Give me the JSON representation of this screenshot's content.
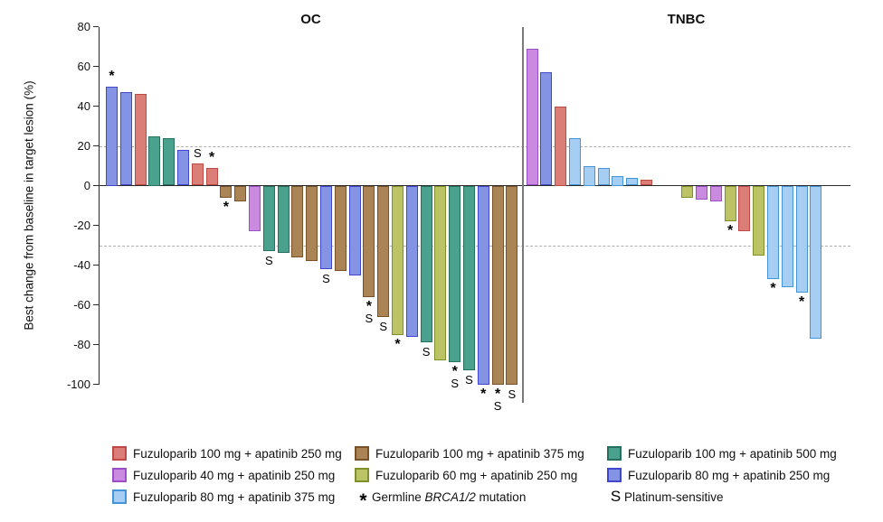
{
  "chart_data": {
    "type": "bar",
    "subtype": "waterfall",
    "title": "",
    "ylabel": "Best change from baseline in target lesion (%)",
    "ylim": [
      -105,
      80
    ],
    "yticks": [
      80,
      60,
      40,
      20,
      0,
      -20,
      -40,
      -60,
      -80,
      -100
    ],
    "reference_lines": [
      20,
      -30
    ],
    "grid": false,
    "legend_position": "bottom",
    "colors": {
      "f100_a250": {
        "fill": "#db7e78",
        "border": "#bf4a45",
        "label": "Fuzuloparib 100 mg + apatinib 250 mg"
      },
      "f40_a250": {
        "fill": "#c98ae0",
        "border": "#9a4fc8",
        "label": "Fuzuloparib 40 mg + apatinib 250 mg"
      },
      "f80_a375": {
        "fill": "#a6cdf2",
        "border": "#4394d9",
        "label": "Fuzuloparib 80 mg + apatinib 375 mg"
      },
      "f100_a375": {
        "fill": "#ab8456",
        "border": "#7a5228",
        "label": "Fuzuloparib 100 mg + apatinib 375 mg"
      },
      "f60_a250": {
        "fill": "#bcc364",
        "border": "#7f8f2a",
        "label": "Fuzuloparib 60 mg + apatinib 250 mg"
      },
      "f100_a500": {
        "fill": "#4aa28e",
        "border": "#27705e",
        "label": "Fuzuloparib 100 mg + apatinib 500 mg"
      },
      "f80_a250": {
        "fill": "#8493e4",
        "border": "#3f48cc",
        "label": "Fuzuloparib 80 mg + apatinib 250 mg"
      }
    },
    "groups": [
      {
        "title": "OC",
        "bars": [
          {
            "dose": "f80_a250",
            "value": 50,
            "mark": "*"
          },
          {
            "dose": "f80_a250",
            "value": 47,
            "mark": ""
          },
          {
            "dose": "f100_a250",
            "value": 46,
            "mark": ""
          },
          {
            "dose": "f100_a500",
            "value": 25,
            "mark": ""
          },
          {
            "dose": "f100_a500",
            "value": 24,
            "mark": ""
          },
          {
            "dose": "f80_a250",
            "value": 18,
            "mark": ""
          },
          {
            "dose": "f100_a250",
            "value": 11,
            "mark": "S"
          },
          {
            "dose": "f100_a250",
            "value": 9,
            "mark": "*"
          },
          {
            "dose": "f100_a375",
            "value": -6,
            "mark": "*"
          },
          {
            "dose": "f100_a375",
            "value": -8,
            "mark": ""
          },
          {
            "dose": "f40_a250",
            "value": -23,
            "mark": ""
          },
          {
            "dose": "f100_a500",
            "value": -33,
            "mark": "S"
          },
          {
            "dose": "f100_a500",
            "value": -34,
            "mark": ""
          },
          {
            "dose": "f100_a375",
            "value": -36,
            "mark": ""
          },
          {
            "dose": "f100_a375",
            "value": -38,
            "mark": ""
          },
          {
            "dose": "f80_a250",
            "value": -42,
            "mark": "S"
          },
          {
            "dose": "f100_a375",
            "value": -43,
            "mark": ""
          },
          {
            "dose": "f80_a250",
            "value": -45,
            "mark": ""
          },
          {
            "dose": "f100_a375",
            "value": -56,
            "mark": "*S"
          },
          {
            "dose": "f100_a375",
            "value": -66,
            "mark": "S"
          },
          {
            "dose": "f60_a250",
            "value": -75,
            "mark": "*"
          },
          {
            "dose": "f80_a250",
            "value": -76,
            "mark": ""
          },
          {
            "dose": "f100_a500",
            "value": -79,
            "mark": "S"
          },
          {
            "dose": "f60_a250",
            "value": -88,
            "mark": ""
          },
          {
            "dose": "f100_a500",
            "value": -89,
            "mark": "*S"
          },
          {
            "dose": "f100_a500",
            "value": -93,
            "mark": "S"
          },
          {
            "dose": "f80_a250",
            "value": -100,
            "mark": "*"
          },
          {
            "dose": "f100_a375",
            "value": -100,
            "mark": "*S"
          },
          {
            "dose": "f100_a375",
            "value": -100,
            "mark": "S"
          }
        ]
      },
      {
        "title": "TNBC",
        "gap_after": 9,
        "bars": [
          {
            "dose": "f40_a250",
            "value": 69,
            "mark": ""
          },
          {
            "dose": "f80_a250",
            "value": 57,
            "mark": ""
          },
          {
            "dose": "f100_a250",
            "value": 40,
            "mark": ""
          },
          {
            "dose": "f80_a375",
            "value": 24,
            "mark": ""
          },
          {
            "dose": "f80_a375",
            "value": 10,
            "mark": ""
          },
          {
            "dose": "f80_a375",
            "value": 9,
            "mark": ""
          },
          {
            "dose": "f80_a375",
            "value": 5,
            "mark": ""
          },
          {
            "dose": "f80_a375",
            "value": 4,
            "mark": ""
          },
          {
            "dose": "f100_a250",
            "value": 3,
            "mark": ""
          },
          {
            "dose": "f60_a250",
            "value": -6,
            "mark": ""
          },
          {
            "dose": "f40_a250",
            "value": -7,
            "mark": ""
          },
          {
            "dose": "f40_a250",
            "value": -8,
            "mark": ""
          },
          {
            "dose": "f60_a250",
            "value": -18,
            "mark": "*"
          },
          {
            "dose": "f100_a250",
            "value": -23,
            "mark": ""
          },
          {
            "dose": "f60_a250",
            "value": -35,
            "mark": ""
          },
          {
            "dose": "f80_a375",
            "value": -47,
            "mark": "*"
          },
          {
            "dose": "f80_a375",
            "value": -51,
            "mark": ""
          },
          {
            "dose": "f80_a375",
            "value": -54,
            "mark": "*"
          },
          {
            "dose": "f80_a375",
            "value": -77,
            "mark": ""
          }
        ]
      }
    ],
    "annotations": {
      "asterisk_meaning": "Germline BRCA1/2 mutation",
      "s_meaning": "Platinum-sensitive"
    }
  },
  "legend": {
    "columns": [
      [
        {
          "dose": "f100_a250"
        },
        {
          "dose": "f40_a250"
        },
        {
          "dose": "f80_a375"
        }
      ],
      [
        {
          "dose": "f100_a375"
        },
        {
          "dose": "f60_a250"
        },
        {
          "symbol": "*",
          "label": "Germline BRCA1/2 mutation",
          "italic": "BRCA1/2"
        }
      ],
      [
        {
          "dose": "f100_a500"
        },
        {
          "dose": "f80_a250"
        },
        {
          "symbol": "S",
          "label": "Platinum-sensitive"
        }
      ]
    ]
  }
}
